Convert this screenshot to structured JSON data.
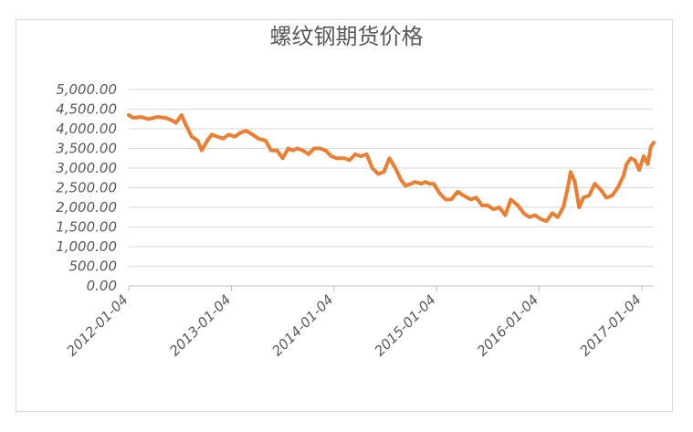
{
  "chart_data": {
    "type": "line",
    "title": "螺纹钢期货价格",
    "xlabel": "",
    "ylabel": "",
    "ylim": [
      0,
      5000
    ],
    "xlim": [
      "2012-01-04",
      "2017-02-15"
    ],
    "grid": "horizontal",
    "legend": "none",
    "line_color": "#ED7D31",
    "y_ticks": [
      "0.00",
      "500.00",
      "1,000.00",
      "1,500.00",
      "2,000.00",
      "2,500.00",
      "3,000.00",
      "3,500.00",
      "4,000.00",
      "4,500.00",
      "5,000.00"
    ],
    "x_ticks": [
      "2012-01-04",
      "2013-01-04",
      "2014-01-04",
      "2015-01-04",
      "2016-01-04",
      "2017-01-04"
    ],
    "series": [
      {
        "name": "",
        "x": [
          "2012-01-04",
          "2012-01-20",
          "2012-02-15",
          "2012-03-15",
          "2012-04-15",
          "2012-05-15",
          "2012-06-10",
          "2012-06-20",
          "2012-07-10",
          "2012-07-25",
          "2012-08-15",
          "2012-09-05",
          "2012-09-20",
          "2012-10-10",
          "2012-10-25",
          "2012-11-15",
          "2012-12-05",
          "2012-12-25",
          "2013-01-15",
          "2013-02-05",
          "2013-02-25",
          "2013-03-20",
          "2013-04-10",
          "2013-05-05",
          "2013-05-25",
          "2013-06-15",
          "2013-07-05",
          "2013-07-25",
          "2013-08-10",
          "2013-08-25",
          "2013-09-15",
          "2013-10-05",
          "2013-10-25",
          "2013-11-15",
          "2013-12-05",
          "2013-12-25",
          "2014-01-15",
          "2014-02-10",
          "2014-02-28",
          "2014-03-20",
          "2014-04-10",
          "2014-04-30",
          "2014-05-20",
          "2014-06-10",
          "2014-06-30",
          "2014-07-20",
          "2014-08-10",
          "2014-08-30",
          "2014-09-15",
          "2014-10-05",
          "2014-10-20",
          "2014-11-10",
          "2014-11-25",
          "2014-12-10",
          "2014-12-25",
          "2015-01-15",
          "2015-02-05",
          "2015-02-25",
          "2015-03-20",
          "2015-04-10",
          "2015-05-05",
          "2015-05-25",
          "2015-06-15",
          "2015-07-05",
          "2015-07-25",
          "2015-08-15",
          "2015-09-05",
          "2015-09-25",
          "2015-10-20",
          "2015-11-10",
          "2015-11-30",
          "2015-12-20",
          "2016-01-10",
          "2016-01-30",
          "2016-02-20",
          "2016-03-10",
          "2016-03-30",
          "2016-04-15",
          "2016-04-25",
          "2016-05-10",
          "2016-05-25",
          "2016-06-10",
          "2016-06-30",
          "2016-07-20",
          "2016-08-10",
          "2016-08-30",
          "2016-09-20",
          "2016-10-10",
          "2016-10-30",
          "2016-11-10",
          "2016-11-25",
          "2016-12-10",
          "2016-12-25",
          "2017-01-10",
          "2017-01-25",
          "2017-02-05",
          "2017-02-15"
        ],
        "y": [
          4350,
          4280,
          4300,
          4250,
          4300,
          4280,
          4200,
          4150,
          4350,
          4100,
          3800,
          3700,
          3450,
          3700,
          3850,
          3800,
          3750,
          3850,
          3800,
          3900,
          3950,
          3850,
          3750,
          3700,
          3450,
          3450,
          3250,
          3500,
          3450,
          3500,
          3450,
          3350,
          3500,
          3500,
          3450,
          3300,
          3250,
          3250,
          3200,
          3350,
          3300,
          3350,
          3000,
          2850,
          2900,
          3250,
          3000,
          2700,
          2550,
          2600,
          2650,
          2600,
          2650,
          2600,
          2600,
          2350,
          2200,
          2200,
          2400,
          2300,
          2200,
          2250,
          2050,
          2050,
          1950,
          2000,
          1800,
          2200,
          2050,
          1850,
          1750,
          1800,
          1700,
          1650,
          1850,
          1750,
          2000,
          2500,
          2900,
          2650,
          2000,
          2250,
          2300,
          2600,
          2450,
          2250,
          2300,
          2500,
          2800,
          3100,
          3250,
          3200,
          2950,
          3300,
          3100,
          3550,
          3650
        ]
      }
    ]
  }
}
